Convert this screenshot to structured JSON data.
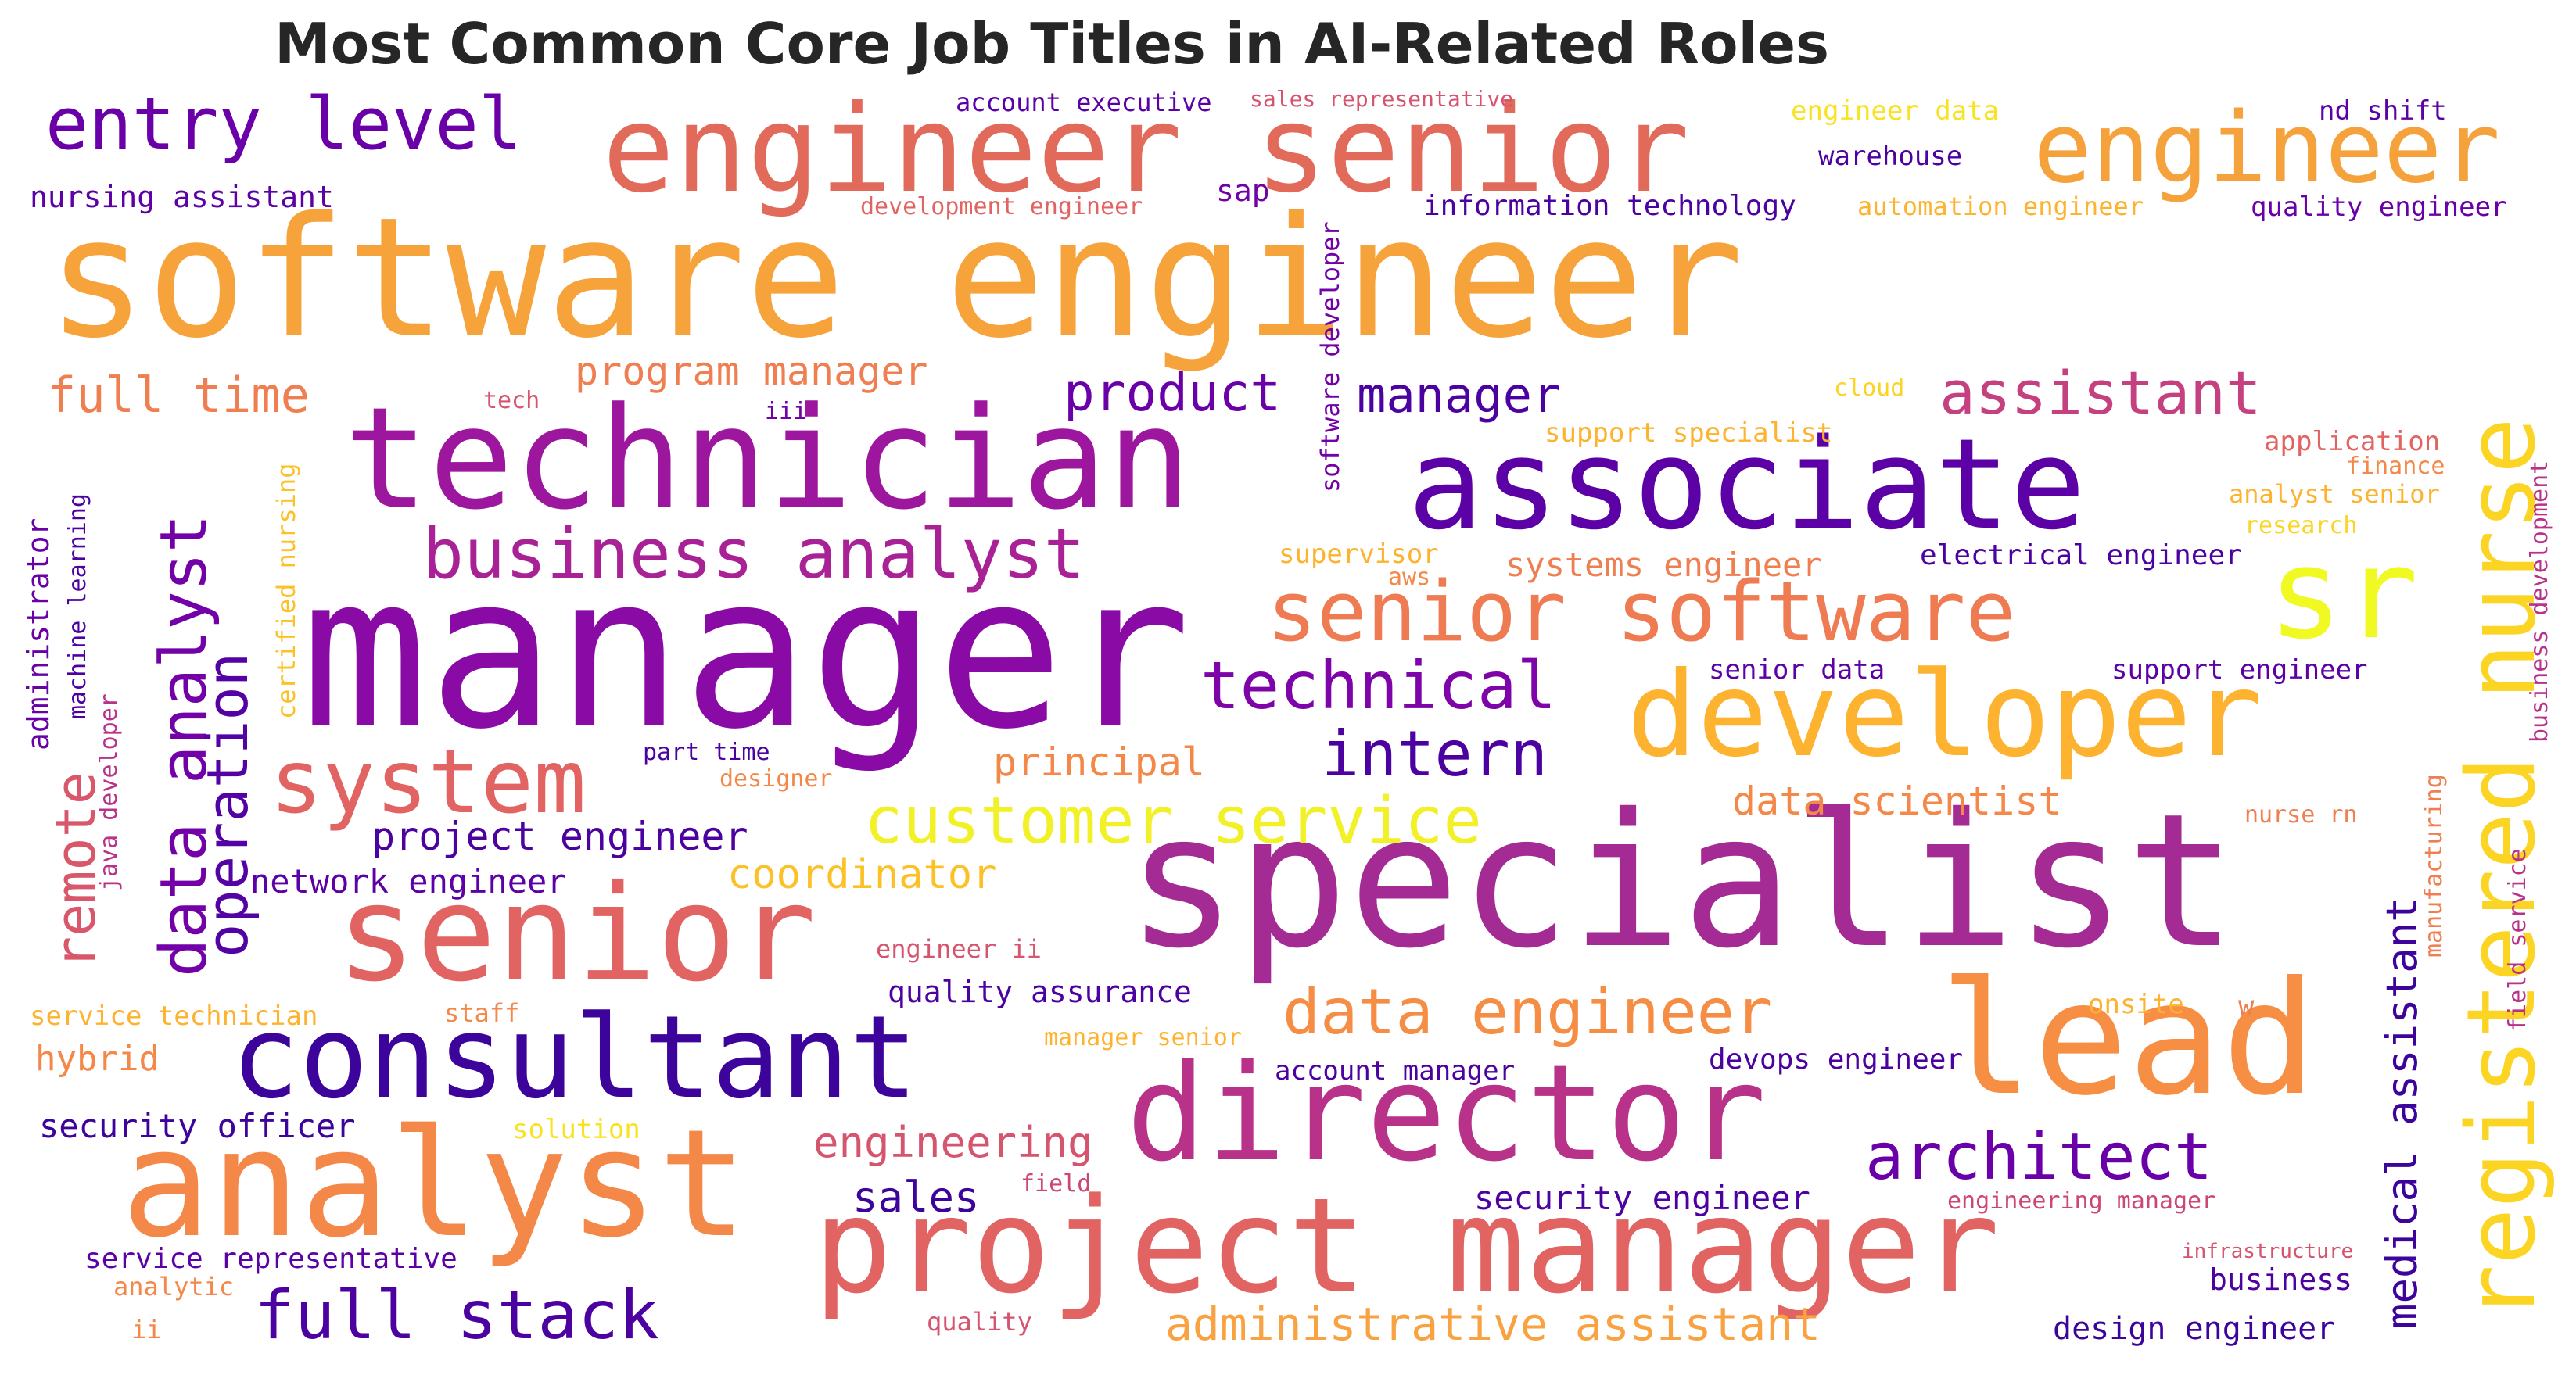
{
  "title": "Most Common Core Job Titles in AI-Related Roles",
  "words": [
    {
      "text": "software engineer",
      "color": "#f7a33b"
    },
    {
      "text": "engineer senior",
      "color": "#e16a5a"
    },
    {
      "text": "engineer",
      "color": "#f6a23c"
    },
    {
      "text": "entry level",
      "color": "#6a00a8"
    },
    {
      "text": "technician",
      "color": "#9c179e"
    },
    {
      "text": "associate",
      "color": "#5b01a5"
    },
    {
      "text": "manager",
      "color": "#8a0aa5"
    },
    {
      "text": "specialist",
      "color": "#a42b93"
    },
    {
      "text": "senior",
      "color": "#e16462"
    },
    {
      "text": "consultant",
      "color": "#3d049b"
    },
    {
      "text": "analyst",
      "color": "#f48849"
    },
    {
      "text": "director",
      "color": "#b83289"
    },
    {
      "text": "project manager",
      "color": "#e16462"
    },
    {
      "text": "developer",
      "color": "#fdb32f"
    },
    {
      "text": "lead",
      "color": "#f68f44"
    },
    {
      "text": "sr",
      "color": "#f0f921"
    },
    {
      "text": "registered nurse",
      "color": "#fbd424"
    },
    {
      "text": "senior software",
      "color": "#ee7b51"
    },
    {
      "text": "system",
      "color": "#e16462"
    },
    {
      "text": "business analyst",
      "color": "#a82296"
    },
    {
      "text": "technical",
      "color": "#7e03a8"
    },
    {
      "text": "intern",
      "color": "#4c02a1"
    },
    {
      "text": "customer service",
      "color": "#f2f027"
    },
    {
      "text": "data analyst",
      "color": "#7201a8"
    },
    {
      "text": "operation",
      "color": "#5302a3"
    },
    {
      "text": "remote",
      "color": "#d8576b"
    },
    {
      "text": "full time",
      "color": "#ef7e50"
    },
    {
      "text": "product",
      "color": "#6a00a8"
    },
    {
      "text": "manager",
      "color": "#4c02a1"
    },
    {
      "text": "assistant",
      "color": "#c5407e"
    },
    {
      "text": "data engineer",
      "color": "#f68d45"
    },
    {
      "text": "full stack",
      "color": "#4c02a1"
    },
    {
      "text": "architect",
      "color": "#6a00a8"
    },
    {
      "text": "administrative assistant",
      "color": "#f9a242"
    },
    {
      "text": "medical assistant",
      "color": "#3d049b"
    },
    {
      "text": "program manager",
      "color": "#ef7e50"
    },
    {
      "text": "principal",
      "color": "#f48849"
    },
    {
      "text": "project engineer",
      "color": "#4c02a1"
    },
    {
      "text": "coordinator",
      "color": "#fbc127"
    },
    {
      "text": "data scientist",
      "color": "#f48849"
    },
    {
      "text": "network engineer",
      "color": "#5b01a5"
    },
    {
      "text": "quality assurance",
      "color": "#4c02a1"
    },
    {
      "text": "engineering",
      "color": "#d5546e"
    },
    {
      "text": "sales",
      "color": "#3d049b"
    },
    {
      "text": "security officer",
      "color": "#3d049b"
    },
    {
      "text": "hybrid",
      "color": "#f48849"
    },
    {
      "text": "service technician",
      "color": "#fdb32f"
    },
    {
      "text": "staff",
      "color": "#f48849"
    },
    {
      "text": "engineer ii",
      "color": "#d5546e"
    },
    {
      "text": "manager senior",
      "color": "#fdb32f"
    },
    {
      "text": "account manager",
      "color": "#4c02a1"
    },
    {
      "text": "solution",
      "color": "#f9e221"
    },
    {
      "text": "field",
      "color": "#cc4778"
    },
    {
      "text": "security engineer",
      "color": "#4c02a1"
    },
    {
      "text": "service representative",
      "color": "#5b01a5"
    },
    {
      "text": "analytic",
      "color": "#f48849"
    },
    {
      "text": "ii",
      "color": "#f48849"
    },
    {
      "text": "quality",
      "color": "#d5546e"
    },
    {
      "text": "design engineer",
      "color": "#3d049b"
    },
    {
      "text": "business",
      "color": "#4c02a1"
    },
    {
      "text": "infrastructure",
      "color": "#d5546e"
    },
    {
      "text": "engineering manager",
      "color": "#cc4778"
    },
    {
      "text": "devops engineer",
      "color": "#4c02a1"
    },
    {
      "text": "onsite",
      "color": "#fdb32f"
    },
    {
      "text": "w",
      "color": "#ef7e50"
    },
    {
      "text": "nurse rn",
      "color": "#ef7e50"
    },
    {
      "text": "manufacturing",
      "color": "#ef7e50"
    },
    {
      "text": "field service",
      "color": "#b83289"
    },
    {
      "text": "business development",
      "color": "#b83289"
    },
    {
      "text": "support engineer",
      "color": "#5b01a5"
    },
    {
      "text": "senior data",
      "color": "#5b01a5"
    },
    {
      "text": "electrical engineer",
      "color": "#4c02a1"
    },
    {
      "text": "systems engineer",
      "color": "#ef7e50"
    },
    {
      "text": "supervisor",
      "color": "#fdb32f"
    },
    {
      "text": "aws",
      "color": "#f48849"
    },
    {
      "text": "research",
      "color": "#fbd424"
    },
    {
      "text": "analyst senior",
      "color": "#fdb32f"
    },
    {
      "text": "finance",
      "color": "#f48849"
    },
    {
      "text": "application",
      "color": "#e16462"
    },
    {
      "text": "support specialist",
      "color": "#fdb32f"
    },
    {
      "text": "cloud",
      "color": "#fbd424"
    },
    {
      "text": "software developer",
      "color": "#7201a8"
    },
    {
      "text": "tech",
      "color": "#d5546e"
    },
    {
      "text": "iii",
      "color": "#7201a8"
    },
    {
      "text": "part time",
      "color": "#4c02a1"
    },
    {
      "text": "designer",
      "color": "#f48849"
    },
    {
      "text": "certified nursing",
      "color": "#fbc127"
    },
    {
      "text": "administrator",
      "color": "#6a00a8"
    },
    {
      "text": "machine learning",
      "color": "#4c02a1"
    },
    {
      "text": "java developer",
      "color": "#b83289"
    },
    {
      "text": "nursing assistant",
      "color": "#5b01a5"
    },
    {
      "text": "account executive",
      "color": "#5b01a5"
    },
    {
      "text": "sales representative",
      "color": "#d5546e"
    },
    {
      "text": "development engineer",
      "color": "#e16462"
    },
    {
      "text": "sap",
      "color": "#7201a8"
    },
    {
      "text": "engineer data",
      "color": "#f9e221"
    },
    {
      "text": "warehouse",
      "color": "#4c02a1"
    },
    {
      "text": "nd shift",
      "color": "#5b01a5"
    },
    {
      "text": "information technology",
      "color": "#4c02a1"
    },
    {
      "text": "automation engineer",
      "color": "#fdb32f"
    },
    {
      "text": "quality engineer",
      "color": "#6a00a8"
    }
  ]
}
